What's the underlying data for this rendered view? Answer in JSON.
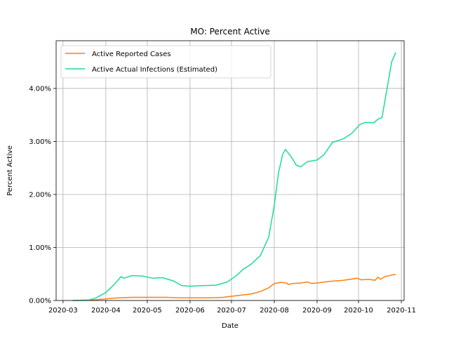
{
  "chart_data": {
    "type": "line",
    "title": "MO: Percent Active",
    "xlabel": "Date",
    "ylabel": "Percent Active",
    "x_tick_labels": [
      "2020-03",
      "2020-04",
      "2020-05",
      "2020-06",
      "2020-07",
      "2020-08",
      "2020-09",
      "2020-10",
      "2020-11"
    ],
    "x_tick_dates": [
      "2020-03-01",
      "2020-04-01",
      "2020-05-01",
      "2020-06-01",
      "2020-07-01",
      "2020-08-01",
      "2020-09-01",
      "2020-10-01",
      "2020-11-01"
    ],
    "y_tick_labels": [
      "0.00%",
      "1.00%",
      "2.00%",
      "3.00%",
      "4.00%"
    ],
    "y_tick_values": [
      0,
      1,
      2,
      3,
      4
    ],
    "xlim": [
      "2020-02-25",
      "2020-11-03"
    ],
    "ylim": [
      0,
      4.9
    ],
    "grid": true,
    "legend_position": "top-left",
    "colors": {
      "reported": "#ff7f0e",
      "actual": "#1ddc96"
    },
    "series": [
      {
        "name": "Active Reported Cases",
        "color": "#ff7f0e",
        "points": [
          [
            "2020-03-08",
            0
          ],
          [
            "2020-03-20",
            0.002
          ],
          [
            "2020-04-01",
            0.03
          ],
          [
            "2020-04-10",
            0.05
          ],
          [
            "2020-04-20",
            0.06
          ],
          [
            "2020-05-01",
            0.06
          ],
          [
            "2020-05-15",
            0.06
          ],
          [
            "2020-05-25",
            0.05
          ],
          [
            "2020-06-01",
            0.05
          ],
          [
            "2020-06-15",
            0.05
          ],
          [
            "2020-06-25",
            0.06
          ],
          [
            "2020-07-01",
            0.08
          ],
          [
            "2020-07-08",
            0.1
          ],
          [
            "2020-07-15",
            0.12
          ],
          [
            "2020-07-22",
            0.17
          ],
          [
            "2020-07-28",
            0.24
          ],
          [
            "2020-08-01",
            0.32
          ],
          [
            "2020-08-06",
            0.34
          ],
          [
            "2020-08-10",
            0.33
          ],
          [
            "2020-08-11",
            0.3
          ],
          [
            "2020-08-14",
            0.32
          ],
          [
            "2020-08-20",
            0.33
          ],
          [
            "2020-08-25",
            0.35
          ],
          [
            "2020-08-28",
            0.32
          ],
          [
            "2020-09-01",
            0.33
          ],
          [
            "2020-09-10",
            0.36
          ],
          [
            "2020-09-20",
            0.38
          ],
          [
            "2020-09-30",
            0.42
          ],
          [
            "2020-10-03",
            0.39
          ],
          [
            "2020-10-08",
            0.4
          ],
          [
            "2020-10-13",
            0.38
          ],
          [
            "2020-10-15",
            0.44
          ],
          [
            "2020-10-17",
            0.4
          ],
          [
            "2020-10-20",
            0.45
          ],
          [
            "2020-10-25",
            0.48
          ],
          [
            "2020-10-28",
            0.49
          ]
        ]
      },
      {
        "name": "Active Actual Infections (Estimated)",
        "color": "#1ddc96",
        "points": [
          [
            "2020-03-08",
            0
          ],
          [
            "2020-03-20",
            0.01
          ],
          [
            "2020-03-25",
            0.05
          ],
          [
            "2020-04-01",
            0.15
          ],
          [
            "2020-04-07",
            0.3
          ],
          [
            "2020-04-12",
            0.45
          ],
          [
            "2020-04-14",
            0.42
          ],
          [
            "2020-04-20",
            0.47
          ],
          [
            "2020-04-28",
            0.46
          ],
          [
            "2020-05-05",
            0.42
          ],
          [
            "2020-05-12",
            0.43
          ],
          [
            "2020-05-20",
            0.37
          ],
          [
            "2020-05-26",
            0.28
          ],
          [
            "2020-06-01",
            0.27
          ],
          [
            "2020-06-10",
            0.28
          ],
          [
            "2020-06-20",
            0.29
          ],
          [
            "2020-06-28",
            0.35
          ],
          [
            "2020-07-05",
            0.48
          ],
          [
            "2020-07-10",
            0.6
          ],
          [
            "2020-07-15",
            0.68
          ],
          [
            "2020-07-22",
            0.85
          ],
          [
            "2020-07-28",
            1.2
          ],
          [
            "2020-08-01",
            1.8
          ],
          [
            "2020-08-04",
            2.4
          ],
          [
            "2020-08-07",
            2.75
          ],
          [
            "2020-08-09",
            2.85
          ],
          [
            "2020-08-13",
            2.72
          ],
          [
            "2020-08-17",
            2.55
          ],
          [
            "2020-08-20",
            2.52
          ],
          [
            "2020-08-25",
            2.62
          ],
          [
            "2020-09-01",
            2.65
          ],
          [
            "2020-09-06",
            2.75
          ],
          [
            "2020-09-12",
            2.98
          ],
          [
            "2020-09-20",
            3.05
          ],
          [
            "2020-09-26",
            3.15
          ],
          [
            "2020-10-02",
            3.32
          ],
          [
            "2020-10-06",
            3.36
          ],
          [
            "2020-10-12",
            3.35
          ],
          [
            "2020-10-15",
            3.42
          ],
          [
            "2020-10-18",
            3.45
          ],
          [
            "2020-10-21",
            3.9
          ],
          [
            "2020-10-25",
            4.5
          ],
          [
            "2020-10-28",
            4.68
          ]
        ]
      }
    ]
  }
}
